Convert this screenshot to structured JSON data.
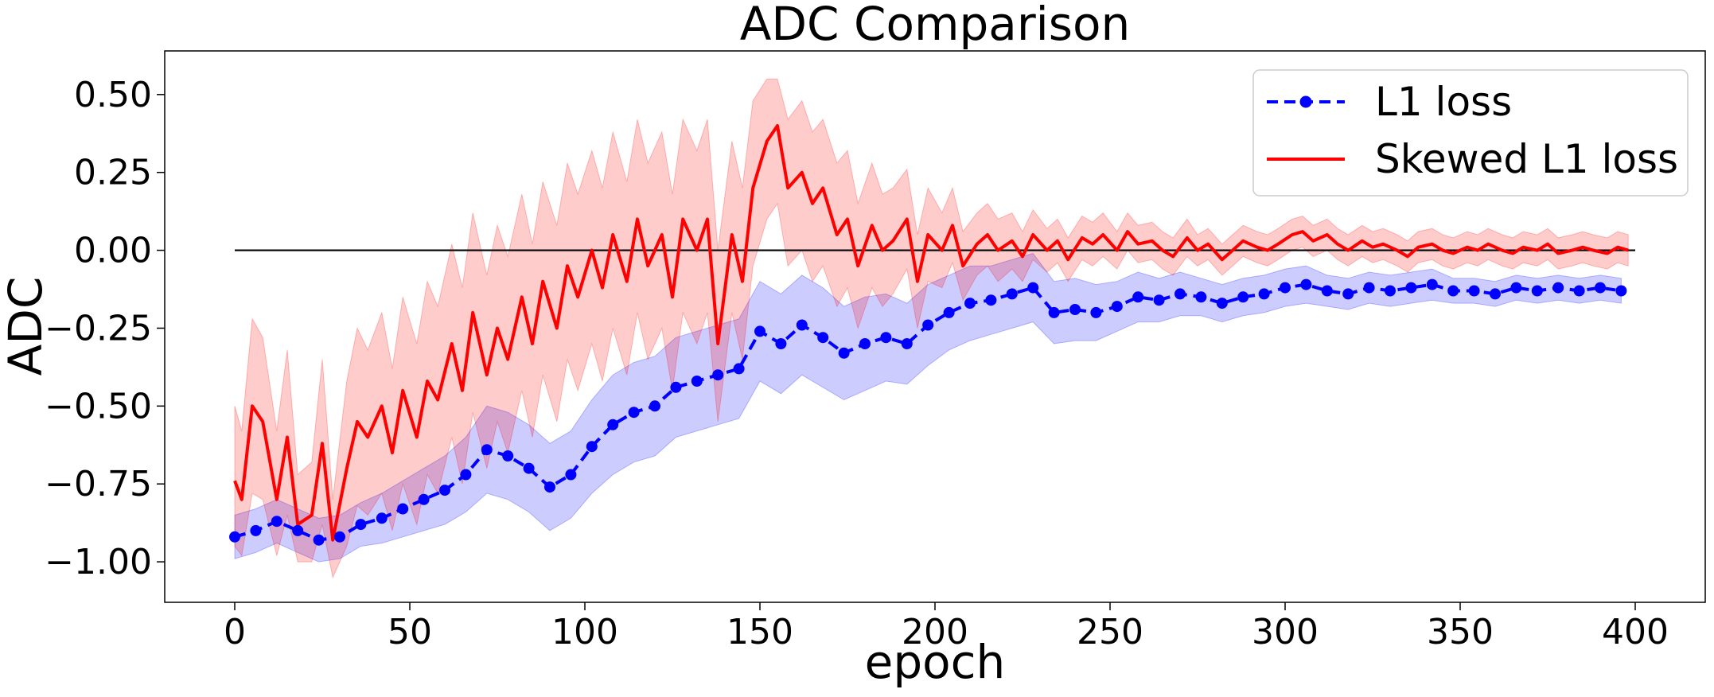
{
  "chart_data": {
    "type": "line",
    "title": "ADC Comparison",
    "xlabel": "epoch",
    "ylabel": "ADC",
    "xlim": [
      -20,
      420
    ],
    "ylim": [
      -1.13,
      0.64
    ],
    "xticks": [
      0,
      50,
      100,
      150,
      200,
      250,
      300,
      350,
      400
    ],
    "xtick_labels": [
      "0",
      "50",
      "100",
      "150",
      "200",
      "250",
      "300",
      "350",
      "400"
    ],
    "yticks": [
      0.5,
      0.25,
      0.0,
      -0.25,
      -0.5,
      -0.75,
      -1.0
    ],
    "ytick_labels": [
      "0.50",
      "0.25",
      "0.00",
      "−0.25",
      "−0.50",
      "−0.75",
      "−1.00"
    ],
    "legend_position": "top-right",
    "reference_line": {
      "y": 0,
      "x_from": 0,
      "x_to": 400,
      "color": "#000000"
    },
    "series": [
      {
        "name": "L1 loss",
        "legend_label": "L1 loss",
        "color": "#0000ff",
        "style": "dashed-with-markers",
        "band_alpha": 0.2,
        "x": [
          0,
          6,
          12,
          18,
          24,
          30,
          36,
          42,
          48,
          54,
          60,
          66,
          72,
          78,
          84,
          90,
          96,
          102,
          108,
          114,
          120,
          126,
          132,
          138,
          144,
          150,
          156,
          162,
          168,
          174,
          180,
          186,
          192,
          198,
          204,
          210,
          216,
          222,
          228,
          234,
          240,
          246,
          252,
          258,
          264,
          270,
          276,
          282,
          288,
          294,
          300,
          306,
          312,
          318,
          324,
          330,
          336,
          342,
          348,
          354,
          360,
          366,
          372,
          378,
          384,
          390,
          396
        ],
        "values": [
          -0.92,
          -0.9,
          -0.87,
          -0.9,
          -0.93,
          -0.92,
          -0.88,
          -0.86,
          -0.83,
          -0.8,
          -0.77,
          -0.72,
          -0.64,
          -0.66,
          -0.7,
          -0.76,
          -0.72,
          -0.63,
          -0.56,
          -0.52,
          -0.5,
          -0.44,
          -0.42,
          -0.4,
          -0.38,
          -0.26,
          -0.3,
          -0.24,
          -0.28,
          -0.33,
          -0.3,
          -0.28,
          -0.3,
          -0.24,
          -0.2,
          -0.17,
          -0.16,
          -0.14,
          -0.12,
          -0.2,
          -0.19,
          -0.2,
          -0.18,
          -0.15,
          -0.16,
          -0.14,
          -0.15,
          -0.17,
          -0.15,
          -0.14,
          -0.12,
          -0.11,
          -0.13,
          -0.14,
          -0.12,
          -0.13,
          -0.12,
          -0.11,
          -0.13,
          -0.13,
          -0.14,
          -0.12,
          -0.13,
          -0.12,
          -0.13,
          -0.12,
          -0.13
        ],
        "lower": [
          -0.99,
          -0.97,
          -0.94,
          -0.97,
          -1.0,
          -0.99,
          -0.95,
          -0.94,
          -0.92,
          -0.9,
          -0.88,
          -0.84,
          -0.78,
          -0.8,
          -0.84,
          -0.9,
          -0.86,
          -0.78,
          -0.72,
          -0.68,
          -0.66,
          -0.6,
          -0.58,
          -0.56,
          -0.54,
          -0.42,
          -0.46,
          -0.4,
          -0.44,
          -0.48,
          -0.45,
          -0.42,
          -0.43,
          -0.37,
          -0.32,
          -0.29,
          -0.27,
          -0.25,
          -0.23,
          -0.3,
          -0.29,
          -0.29,
          -0.26,
          -0.23,
          -0.23,
          -0.21,
          -0.21,
          -0.23,
          -0.21,
          -0.2,
          -0.18,
          -0.17,
          -0.18,
          -0.19,
          -0.17,
          -0.18,
          -0.17,
          -0.16,
          -0.17,
          -0.17,
          -0.18,
          -0.16,
          -0.17,
          -0.16,
          -0.17,
          -0.16,
          -0.17
        ],
        "upper": [
          -0.85,
          -0.83,
          -0.8,
          -0.83,
          -0.86,
          -0.85,
          -0.81,
          -0.78,
          -0.74,
          -0.7,
          -0.66,
          -0.6,
          -0.5,
          -0.52,
          -0.56,
          -0.62,
          -0.58,
          -0.48,
          -0.4,
          -0.36,
          -0.34,
          -0.28,
          -0.26,
          -0.24,
          -0.22,
          -0.1,
          -0.14,
          -0.08,
          -0.12,
          -0.18,
          -0.15,
          -0.14,
          -0.17,
          -0.11,
          -0.08,
          -0.05,
          -0.05,
          -0.03,
          -0.01,
          -0.1,
          -0.09,
          -0.11,
          -0.1,
          -0.07,
          -0.09,
          -0.07,
          -0.09,
          -0.11,
          -0.09,
          -0.08,
          -0.06,
          -0.05,
          -0.08,
          -0.09,
          -0.07,
          -0.08,
          -0.07,
          -0.06,
          -0.09,
          -0.09,
          -0.1,
          -0.08,
          -0.09,
          -0.08,
          -0.09,
          -0.08,
          -0.09
        ]
      },
      {
        "name": "Skewed L1 loss",
        "legend_label": "Skewed L1 loss",
        "color": "#ff0000",
        "style": "solid",
        "band_alpha": 0.2,
        "x": [
          0,
          2,
          5,
          8,
          12,
          15,
          18,
          22,
          25,
          28,
          32,
          35,
          38,
          42,
          45,
          48,
          52,
          55,
          58,
          62,
          65,
          68,
          72,
          75,
          78,
          82,
          85,
          88,
          92,
          95,
          98,
          102,
          105,
          108,
          112,
          115,
          118,
          122,
          125,
          128,
          132,
          135,
          138,
          142,
          145,
          148,
          152,
          155,
          158,
          162,
          165,
          168,
          172,
          175,
          178,
          182,
          185,
          188,
          192,
          195,
          198,
          202,
          205,
          208,
          212,
          215,
          218,
          222,
          225,
          228,
          232,
          235,
          238,
          242,
          245,
          248,
          252,
          255,
          258,
          262,
          265,
          268,
          272,
          275,
          278,
          282,
          285,
          288,
          292,
          295,
          298,
          302,
          305,
          308,
          312,
          315,
          318,
          322,
          325,
          328,
          332,
          335,
          338,
          342,
          345,
          348,
          352,
          355,
          358,
          362,
          365,
          368,
          372,
          375,
          378,
          382,
          385,
          388,
          392,
          395,
          398
        ],
        "values": [
          -0.74,
          -0.8,
          -0.5,
          -0.55,
          -0.8,
          -0.6,
          -0.88,
          -0.85,
          -0.62,
          -0.93,
          -0.7,
          -0.55,
          -0.6,
          -0.5,
          -0.65,
          -0.45,
          -0.6,
          -0.42,
          -0.48,
          -0.3,
          -0.45,
          -0.2,
          -0.4,
          -0.25,
          -0.35,
          -0.15,
          -0.3,
          -0.1,
          -0.25,
          -0.05,
          -0.15,
          0.0,
          -0.12,
          0.05,
          -0.1,
          0.1,
          -0.05,
          0.05,
          -0.15,
          0.1,
          0.0,
          0.1,
          -0.3,
          0.05,
          -0.1,
          0.2,
          0.35,
          0.4,
          0.2,
          0.25,
          0.15,
          0.2,
          0.05,
          0.1,
          -0.05,
          0.08,
          0.0,
          0.03,
          0.1,
          -0.1,
          0.05,
          0.0,
          0.08,
          -0.05,
          0.02,
          0.05,
          0.0,
          0.03,
          -0.02,
          0.05,
          0.0,
          0.03,
          -0.03,
          0.04,
          0.02,
          0.05,
          0.0,
          0.06,
          0.02,
          0.03,
          0.0,
          -0.02,
          0.04,
          0.0,
          0.02,
          -0.03,
          0.0,
          0.03,
          0.01,
          0.0,
          0.02,
          0.05,
          0.06,
          0.03,
          0.05,
          0.02,
          0.0,
          0.03,
          0.01,
          0.02,
          0.0,
          -0.02,
          0.01,
          0.02,
          0.0,
          -0.01,
          0.01,
          0.0,
          0.02,
          0.0,
          -0.01,
          0.01,
          0.0,
          0.02,
          -0.01,
          0.0,
          0.01,
          0.0,
          -0.01,
          0.01,
          0.0
        ],
        "lower": [
          -0.95,
          -0.98,
          -0.78,
          -0.8,
          -0.98,
          -0.85,
          -1.0,
          -1.0,
          -0.88,
          -1.05,
          -0.95,
          -0.82,
          -0.85,
          -0.78,
          -0.9,
          -0.75,
          -0.88,
          -0.72,
          -0.78,
          -0.6,
          -0.75,
          -0.52,
          -0.7,
          -0.55,
          -0.65,
          -0.45,
          -0.6,
          -0.4,
          -0.55,
          -0.35,
          -0.45,
          -0.3,
          -0.42,
          -0.25,
          -0.4,
          -0.2,
          -0.35,
          -0.25,
          -0.45,
          -0.2,
          -0.3,
          -0.2,
          -0.55,
          -0.2,
          -0.35,
          -0.05,
          0.1,
          0.15,
          -0.05,
          0.0,
          -0.1,
          -0.05,
          -0.18,
          -0.12,
          -0.25,
          -0.12,
          -0.18,
          -0.14,
          -0.06,
          -0.25,
          -0.1,
          -0.12,
          -0.04,
          -0.16,
          -0.08,
          -0.05,
          -0.1,
          -0.06,
          -0.1,
          -0.03,
          -0.07,
          -0.04,
          -0.1,
          -0.03,
          -0.05,
          -0.02,
          -0.06,
          0.0,
          -0.04,
          -0.03,
          -0.06,
          -0.08,
          -0.02,
          -0.05,
          -0.03,
          -0.08,
          -0.05,
          -0.02,
          -0.04,
          -0.05,
          -0.03,
          0.0,
          0.01,
          -0.02,
          0.0,
          -0.03,
          -0.05,
          -0.02,
          -0.04,
          -0.03,
          -0.05,
          -0.07,
          -0.04,
          -0.03,
          -0.05,
          -0.06,
          -0.04,
          -0.05,
          -0.03,
          -0.05,
          -0.06,
          -0.04,
          -0.05,
          -0.03,
          -0.06,
          -0.05,
          -0.04,
          -0.05,
          -0.06,
          -0.04,
          -0.05
        ],
        "upper": [
          -0.5,
          -0.58,
          -0.22,
          -0.28,
          -0.58,
          -0.32,
          -0.72,
          -0.68,
          -0.35,
          -0.8,
          -0.42,
          -0.25,
          -0.32,
          -0.2,
          -0.38,
          -0.15,
          -0.3,
          -0.1,
          -0.18,
          0.02,
          -0.12,
          0.12,
          -0.08,
          0.08,
          -0.02,
          0.18,
          0.02,
          0.22,
          0.08,
          0.28,
          0.18,
          0.32,
          0.2,
          0.38,
          0.22,
          0.42,
          0.28,
          0.38,
          0.18,
          0.42,
          0.32,
          0.42,
          0.0,
          0.35,
          0.2,
          0.48,
          0.55,
          0.55,
          0.42,
          0.48,
          0.38,
          0.42,
          0.28,
          0.32,
          0.15,
          0.28,
          0.18,
          0.2,
          0.26,
          0.05,
          0.2,
          0.12,
          0.2,
          0.06,
          0.12,
          0.15,
          0.1,
          0.12,
          0.06,
          0.13,
          0.07,
          0.1,
          0.04,
          0.11,
          0.09,
          0.12,
          0.06,
          0.12,
          0.08,
          0.09,
          0.06,
          0.04,
          0.1,
          0.05,
          0.07,
          0.02,
          0.05,
          0.08,
          0.06,
          0.05,
          0.07,
          0.1,
          0.11,
          0.08,
          0.1,
          0.07,
          0.05,
          0.08,
          0.06,
          0.07,
          0.05,
          0.03,
          0.06,
          0.07,
          0.05,
          0.04,
          0.06,
          0.05,
          0.07,
          0.05,
          0.04,
          0.06,
          0.05,
          0.07,
          0.04,
          0.05,
          0.06,
          0.05,
          0.04,
          0.06,
          0.05
        ]
      }
    ]
  }
}
